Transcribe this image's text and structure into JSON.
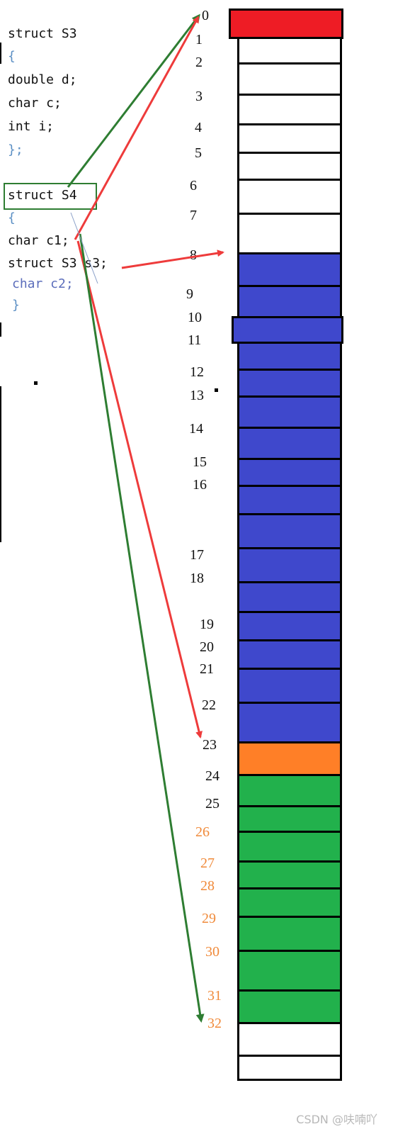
{
  "code": {
    "s3_decl": "struct S3",
    "s3_open": "{",
    "s3_f1": "double d;",
    "s3_f2": "char c;",
    "s3_f3": "int i;",
    "s3_close": "};",
    "s4_decl": "struct S4",
    "s4_open": "{",
    "s4_f1": "char c1;",
    "s4_f2": "struct S3 s3;",
    "s4_f3": "char c2;",
    "s4_close": "}"
  },
  "indices": [
    "0",
    "1",
    "2",
    "3",
    "4",
    "5",
    "6",
    "7",
    "8",
    "9",
    "10",
    "11",
    "12",
    "13",
    "14",
    "15",
    "16",
    "17",
    "18",
    "19",
    "20",
    "21",
    "22",
    "23",
    "24",
    "25",
    "26",
    "27",
    "28",
    "29",
    "30",
    "31",
    "32"
  ],
  "colors": {
    "c1": "#ee1c25",
    "s3": "#3f48cc",
    "c2": "#ff7f27",
    "padding": "#22b14c",
    "empty": "#ffffff",
    "arrow_red": "#ee3b3b",
    "arrow_green": "#2e7d32",
    "index_orange": "#f08a3a"
  },
  "watermark": "CSDN @呋喃吖"
}
